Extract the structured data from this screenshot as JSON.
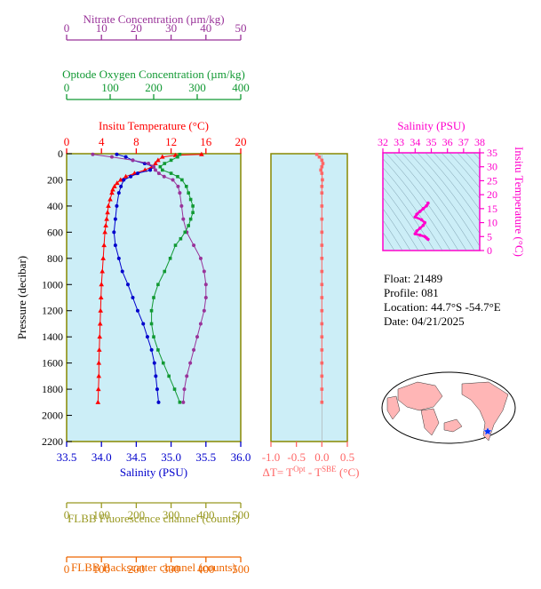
{
  "colors": {
    "temperature": "#ff0000",
    "salinity": "#0000cc",
    "nitrate": "#993399",
    "oxygen": "#119933",
    "fluorescence": "#999922",
    "backscatter": "#ee6600",
    "delta": "#ff6666",
    "ts": "#ff00cc",
    "panel_bg": "#cceef7",
    "frame": "#888800"
  },
  "info": {
    "float": "Float:  21489",
    "profile": "Profile:  081",
    "location": "Location:  44.7°S  -54.7°E",
    "date": "Date:  04/21/2025"
  },
  "chart_data": [
    {
      "type": "line",
      "axes": {
        "pressure": {
          "label": "Pressure (decibar)",
          "range": [
            0,
            2200
          ],
          "ticks": [
            "0",
            "200",
            "400",
            "600",
            "800",
            "1000",
            "1200",
            "1400",
            "1600",
            "1800",
            "2000",
            "2200"
          ],
          "inverted": true
        },
        "temperature": {
          "label": "Insitu Temperature (°C)",
          "range": [
            0,
            20
          ],
          "ticks": [
            "0",
            "4",
            "8",
            "12",
            "16",
            "20"
          ]
        },
        "salinity": {
          "label": "Salinity (PSU)",
          "range": [
            33.5,
            36.0
          ],
          "ticks": [
            "33.5",
            "34.0",
            "34.5",
            "35.0",
            "35.5",
            "36.0"
          ]
        },
        "nitrate": {
          "label": "Nitrate Concentration (µm/kg)",
          "range": [
            0,
            50
          ],
          "ticks": [
            "0",
            "10",
            "20",
            "30",
            "40",
            "50"
          ]
        },
        "oxygen": {
          "label": "Optode Oxygen Concentration (µm/kg)",
          "range": [
            0,
            400
          ],
          "ticks": [
            "0",
            "100",
            "200",
            "300",
            "400"
          ]
        },
        "fluorescence": {
          "label": "FLBB Fluorescence channel (counts)",
          "range": [
            0,
            500
          ],
          "ticks": [
            "0",
            "100",
            "200",
            "300",
            "400",
            "500"
          ]
        },
        "backscatter": {
          "label": "FLBB Backscatter channel (counts)",
          "range": [
            0,
            500
          ],
          "ticks": [
            "0",
            "100",
            "200",
            "300",
            "400",
            "500"
          ]
        }
      },
      "series": [
        {
          "key": "temperature",
          "points": [
            [
              15.5,
              5
            ],
            [
              12.5,
              12
            ],
            [
              11.0,
              25
            ],
            [
              10.5,
              50
            ],
            [
              10.2,
              75
            ],
            [
              9.8,
              100
            ],
            [
              9.0,
              125
            ],
            [
              7.8,
              150
            ],
            [
              6.8,
              175
            ],
            [
              6.2,
              200
            ],
            [
              5.8,
              225
            ],
            [
              5.5,
              250
            ],
            [
              5.3,
              275
            ],
            [
              5.2,
              300
            ],
            [
              5.0,
              350
            ],
            [
              4.8,
              400
            ],
            [
              4.7,
              450
            ],
            [
              4.6,
              500
            ],
            [
              4.5,
              550
            ],
            [
              4.4,
              600
            ],
            [
              4.3,
              700
            ],
            [
              4.2,
              800
            ],
            [
              4.1,
              900
            ],
            [
              4.0,
              1000
            ],
            [
              3.95,
              1100
            ],
            [
              3.9,
              1200
            ],
            [
              3.85,
              1300
            ],
            [
              3.8,
              1400
            ],
            [
              3.75,
              1500
            ],
            [
              3.7,
              1600
            ],
            [
              3.7,
              1700
            ],
            [
              3.65,
              1800
            ],
            [
              3.6,
              1900
            ]
          ]
        },
        {
          "key": "salinity",
          "points": [
            [
              34.22,
              5
            ],
            [
              34.35,
              25
            ],
            [
              34.45,
              50
            ],
            [
              34.62,
              75
            ],
            [
              34.75,
              100
            ],
            [
              34.7,
              125
            ],
            [
              34.52,
              150
            ],
            [
              34.42,
              175
            ],
            [
              34.32,
              200
            ],
            [
              34.28,
              250
            ],
            [
              34.25,
              300
            ],
            [
              34.22,
              400
            ],
            [
              34.2,
              500
            ],
            [
              34.18,
              600
            ],
            [
              34.2,
              700
            ],
            [
              34.25,
              800
            ],
            [
              34.3,
              900
            ],
            [
              34.38,
              1000
            ],
            [
              34.45,
              1100
            ],
            [
              34.52,
              1200
            ],
            [
              34.6,
              1300
            ],
            [
              34.66,
              1400
            ],
            [
              34.72,
              1500
            ],
            [
              34.76,
              1600
            ],
            [
              34.78,
              1700
            ],
            [
              34.8,
              1800
            ],
            [
              34.82,
              1900
            ]
          ]
        },
        {
          "key": "nitrate",
          "points": [
            [
              7.5,
              5
            ],
            [
              13.0,
              25
            ],
            [
              19.0,
              50
            ],
            [
              23.5,
              75
            ],
            [
              25.0,
              100
            ],
            [
              25.5,
              125
            ],
            [
              26.5,
              150
            ],
            [
              28.0,
              175
            ],
            [
              30.5,
              200
            ],
            [
              32.0,
              250
            ],
            [
              32.5,
              300
            ],
            [
              33.0,
              400
            ],
            [
              33.5,
              500
            ],
            [
              34.5,
              600
            ],
            [
              36.5,
              700
            ],
            [
              38.5,
              800
            ],
            [
              39.5,
              900
            ],
            [
              40.0,
              1000
            ],
            [
              40.0,
              1100
            ],
            [
              39.5,
              1200
            ],
            [
              38.5,
              1300
            ],
            [
              37.5,
              1400
            ],
            [
              36.5,
              1500
            ],
            [
              35.5,
              1600
            ],
            [
              34.5,
              1700
            ],
            [
              33.8,
              1800
            ],
            [
              33.5,
              1900
            ]
          ]
        },
        {
          "key": "oxygen",
          "points": [
            [
              260,
              5
            ],
            [
              255,
              25
            ],
            [
              240,
              50
            ],
            [
              225,
              75
            ],
            [
              215,
              100
            ],
            [
              220,
              125
            ],
            [
              240,
              150
            ],
            [
              255,
              175
            ],
            [
              265,
              200
            ],
            [
              275,
              250
            ],
            [
              280,
              300
            ],
            [
              285,
              350
            ],
            [
              290,
              400
            ],
            [
              290,
              450
            ],
            [
              285,
              500
            ],
            [
              280,
              550
            ],
            [
              272,
              600
            ],
            [
              262,
              650
            ],
            [
              250,
              700
            ],
            [
              238,
              800
            ],
            [
              225,
              900
            ],
            [
              210,
              1000
            ],
            [
              200,
              1100
            ],
            [
              195,
              1200
            ],
            [
              195,
              1300
            ],
            [
              200,
              1400
            ],
            [
              210,
              1500
            ],
            [
              222,
              1600
            ],
            [
              235,
              1700
            ],
            [
              248,
              1800
            ],
            [
              260,
              1900
            ]
          ]
        },
        {
          "key": "delta",
          "points": [
            [
              -0.1,
              5
            ],
            [
              -0.05,
              25
            ],
            [
              0.0,
              50
            ],
            [
              0.02,
              75
            ],
            [
              0.0,
              100
            ],
            [
              -0.02,
              125
            ],
            [
              0.0,
              150
            ],
            [
              0.01,
              200
            ],
            [
              0.0,
              250
            ],
            [
              0.0,
              300
            ],
            [
              0.0,
              400
            ],
            [
              0.0,
              500
            ],
            [
              0.0,
              600
            ],
            [
              0.0,
              700
            ],
            [
              0.0,
              800
            ],
            [
              0.0,
              900
            ],
            [
              0.0,
              1000
            ],
            [
              0.0,
              1100
            ],
            [
              0.0,
              1200
            ],
            [
              0.0,
              1300
            ],
            [
              0.0,
              1400
            ],
            [
              0.0,
              1500
            ],
            [
              0.0,
              1600
            ],
            [
              0.0,
              1700
            ],
            [
              0.0,
              1800
            ],
            [
              0.0,
              1900
            ]
          ]
        }
      ]
    },
    {
      "type": "line",
      "axes": {
        "x": {
          "label": "ΔT= T",
          "sup1": "Opt",
          "mid": " - T",
          "sup2": "SBE",
          "unit": " (°C)",
          "range": [
            -1.0,
            0.5
          ],
          "ticks": [
            "-1.0",
            "-0.5",
            "0.0",
            "0.5"
          ]
        }
      }
    },
    {
      "type": "scatter",
      "axes": {
        "salinity": {
          "label": "Salinity (PSU)",
          "range": [
            32,
            38
          ],
          "ticks": [
            "32",
            "33",
            "34",
            "35",
            "36",
            "37",
            "38"
          ]
        },
        "temperature": {
          "label": "Insitu Temperature (°C)",
          "range": [
            0,
            35
          ],
          "ticks": [
            "0",
            "5",
            "10",
            "15",
            "20",
            "25",
            "30",
            "35"
          ]
        }
      },
      "points": [
        [
          34.8,
          17
        ],
        [
          34.7,
          16
        ],
        [
          34.5,
          15
        ],
        [
          34.3,
          14
        ],
        [
          34.1,
          13
        ],
        [
          34.0,
          12
        ],
        [
          34.4,
          11
        ],
        [
          34.6,
          10
        ],
        [
          34.5,
          9
        ],
        [
          34.3,
          8
        ],
        [
          34.1,
          7
        ],
        [
          34.0,
          6
        ],
        [
          34.3,
          5.5
        ],
        [
          34.6,
          5
        ],
        [
          34.7,
          4.5
        ],
        [
          34.8,
          4
        ]
      ]
    }
  ]
}
